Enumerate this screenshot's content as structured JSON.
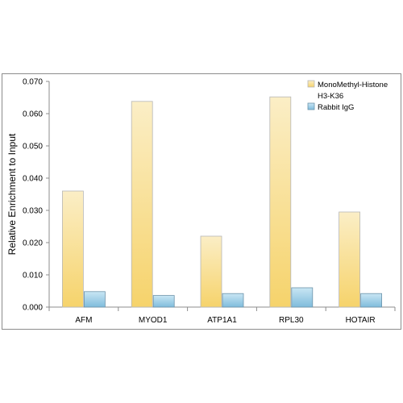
{
  "chart_data": {
    "type": "bar",
    "title": "",
    "xlabel": "",
    "ylabel": "Relative Enrichment to Input",
    "ylim": [
      0,
      0.07
    ],
    "yticks": [
      "0.000",
      "0.010",
      "0.020",
      "0.030",
      "0.040",
      "0.050",
      "0.060",
      "0.070"
    ],
    "categories": [
      "AFM",
      "MYOD1",
      "ATP1A1",
      "RPL30",
      "HOTAIR"
    ],
    "series": [
      {
        "name_lines": [
          "MonoMethyl-Histone",
          "H3-K36"
        ],
        "name": "MonoMethyl-Histone H3-K36",
        "values": [
          0.036,
          0.0638,
          0.022,
          0.0652,
          0.0295
        ],
        "color": "#f7d26a"
      },
      {
        "name": "Rabbit IgG",
        "values": [
          0.0048,
          0.0036,
          0.0042,
          0.006,
          0.0042
        ],
        "color": "#8ec4df"
      }
    ],
    "legend_position": "top-right",
    "grid": false
  }
}
